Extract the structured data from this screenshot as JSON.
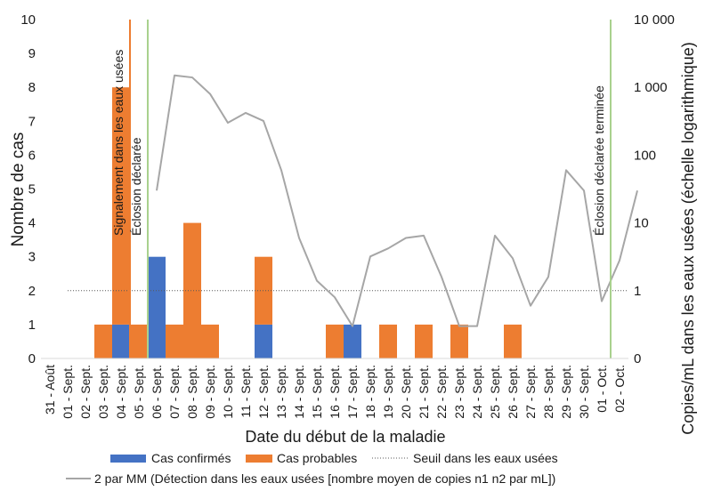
{
  "chart_data": {
    "type": "bar",
    "stacked": true,
    "categories": [
      "31 - Août",
      "01 - Sept.",
      "02 - Sept.",
      "03 - Sept.",
      "04 - Sept.",
      "05 - Sept.",
      "06 - Sept.",
      "07 - Sept.",
      "08 - Sept.",
      "09 - Sept.",
      "10 - Sept.",
      "11 - Sept.",
      "12 - Sept.",
      "13 - Sept.",
      "14 - Sept.",
      "15 - Sept.",
      "16 - Sept.",
      "17 - Sept.",
      "18 - Sept.",
      "19 - Sept.",
      "20 - Sept.",
      "21 - Sept.",
      "22 - Sept.",
      "23 - Sept.",
      "24 - Sept.",
      "25 - Sept.",
      "26 - Sept.",
      "27 - Sept.",
      "28 - Sept.",
      "29 - Sept.",
      "30 - Sept.",
      "01 - Oct.",
      "02 - Oct."
    ],
    "series": [
      {
        "name": "Cas confirmés",
        "color": "#4472c4",
        "values": [
          0,
          0,
          0,
          0,
          1,
          0,
          3,
          0,
          0,
          0,
          0,
          0,
          1,
          0,
          0,
          0,
          0,
          1,
          0,
          0,
          0,
          0,
          0,
          0,
          0,
          0,
          0,
          0,
          0,
          0,
          0,
          0,
          0
        ]
      },
      {
        "name": "Cas probables",
        "color": "#ed7d31",
        "values": [
          0,
          0,
          0,
          1,
          7,
          1,
          0,
          1,
          4,
          1,
          0,
          0,
          2,
          0,
          0,
          0,
          1,
          0,
          0,
          1,
          0,
          1,
          0,
          1,
          0,
          0,
          1,
          0,
          0,
          0,
          0,
          0,
          0
        ]
      }
    ],
    "wastewater": {
      "name": "2 par MM (Détection dans les eaux usées [nombre moyen de copies n1 n2 par mL])",
      "color": "#a6a6a6",
      "start_index": 6,
      "values": [
        30,
        1500,
        1400,
        800,
        300,
        420,
        320,
        60,
        6,
        1.4,
        0.8,
        0.3,
        3.2,
        4.2,
        6,
        6.5,
        1.6,
        0.3,
        0.3,
        6.5,
        3,
        0.6,
        1.6,
        60,
        30,
        0.7,
        2.8,
        30
      ]
    },
    "threshold": {
      "name": "Seuil dans les eaux usées",
      "value": 1,
      "color": "#595959",
      "start_index": 1.5
    },
    "annotations": [
      {
        "label": "Signalement dans les eaux usées",
        "position": 5.0,
        "color": "#ed7d31"
      },
      {
        "label": "Éclosion déclarée",
        "position": 6.0,
        "color": "#a9d18e"
      },
      {
        "label": "Éclosion déclarée terminée",
        "position": 32.0,
        "color": "#a9d18e"
      }
    ],
    "ylabel": "Nombre de cas",
    "y2label": "Copies/mL dans les eaux usées (échelle logarithmique)",
    "xlabel": "Date du début de la maladie",
    "ylim": [
      0,
      10
    ],
    "yticks": [
      "0",
      "1",
      "2",
      "3",
      "4",
      "5",
      "6",
      "7",
      "8",
      "9",
      "10"
    ],
    "y2lim": [
      0.1,
      10000
    ],
    "y2ticks": [
      {
        "value": 0.1,
        "label": "0"
      },
      {
        "value": 1,
        "label": "1"
      },
      {
        "value": 10,
        "label": "10"
      },
      {
        "value": 100,
        "label": "100"
      },
      {
        "value": 1000,
        "label": "1 000"
      },
      {
        "value": 10000,
        "label": "10 000"
      }
    ]
  }
}
